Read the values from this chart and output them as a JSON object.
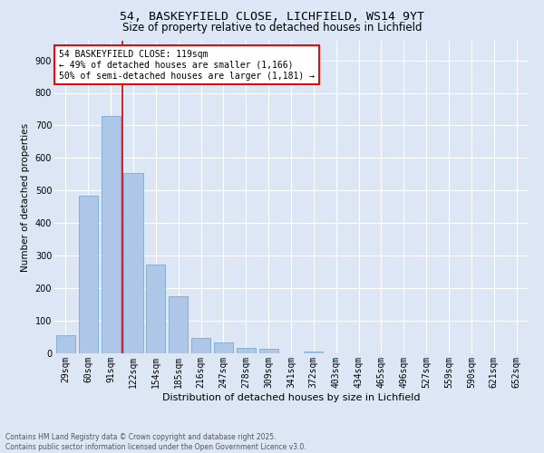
{
  "title": "54, BASKEYFIELD CLOSE, LICHFIELD, WS14 9YT",
  "subtitle": "Size of property relative to detached houses in Lichfield",
  "xlabel": "Distribution of detached houses by size in Lichfield",
  "ylabel": "Number of detached properties",
  "categories": [
    "29sqm",
    "60sqm",
    "91sqm",
    "122sqm",
    "154sqm",
    "185sqm",
    "216sqm",
    "247sqm",
    "278sqm",
    "309sqm",
    "341sqm",
    "372sqm",
    "403sqm",
    "434sqm",
    "465sqm",
    "496sqm",
    "527sqm",
    "559sqm",
    "590sqm",
    "621sqm",
    "652sqm"
  ],
  "values": [
    57,
    484,
    730,
    553,
    272,
    175,
    48,
    33,
    18,
    14,
    0,
    6,
    0,
    0,
    0,
    0,
    0,
    0,
    0,
    0,
    0
  ],
  "bar_color": "#aec6e8",
  "bar_edge_color": "#7aaad0",
  "background_color": "#dce6f5",
  "grid_color": "#ffffff",
  "vline_color": "#cc0000",
  "vline_pos": 2.5,
  "annotation_text": "54 BASKEYFIELD CLOSE: 119sqm\n← 49% of detached houses are smaller (1,166)\n50% of semi-detached houses are larger (1,181) →",
  "footer_line1": "Contains HM Land Registry data © Crown copyright and database right 2025.",
  "footer_line2": "Contains public sector information licensed under the Open Government Licence v3.0.",
  "ylim": [
    0,
    960
  ],
  "yticks": [
    0,
    100,
    200,
    300,
    400,
    500,
    600,
    700,
    800,
    900
  ],
  "title_fontsize": 9.5,
  "subtitle_fontsize": 8.5,
  "xlabel_fontsize": 8,
  "ylabel_fontsize": 7.5,
  "tick_fontsize": 7,
  "annotation_fontsize": 7,
  "footer_fontsize": 5.5
}
